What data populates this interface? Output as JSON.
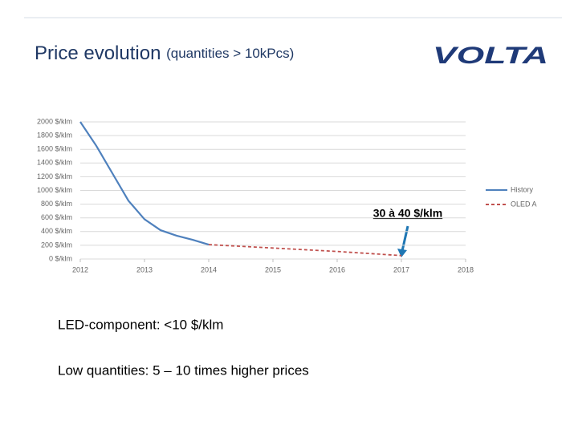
{
  "slide": {
    "title": "Price evolution",
    "subtitle": "(quantities > 10kPcs)",
    "logo": "VOLTA",
    "annotation": "30 à 40 $/klm",
    "bullets": [
      "LED-component: <10 $/klm",
      "Low quantities: 5 – 10 times higher prices"
    ]
  },
  "chart_data": {
    "type": "line",
    "series": [
      {
        "name": "History",
        "color": "#4f81bd",
        "dashed": false,
        "x": [
          2012,
          2012.25,
          2012.5,
          2012.75,
          2013,
          2013.25,
          2013.5,
          2013.75,
          2014
        ],
        "values": [
          2000,
          1650,
          1250,
          850,
          580,
          420,
          340,
          280,
          210
        ]
      },
      {
        "name": "OLED A",
        "color": "#c0504d",
        "dashed": true,
        "x": [
          2014,
          2015,
          2016,
          2016.5,
          2017
        ],
        "values": [
          210,
          160,
          110,
          80,
          50
        ]
      }
    ],
    "xlim": [
      2012,
      2018
    ],
    "xticks": [
      2012,
      2013,
      2014,
      2015,
      2016,
      2017,
      2018
    ],
    "ylim": [
      0,
      2000
    ],
    "yticks": [
      {
        "value": 0,
        "label": "0 $/klm"
      },
      {
        "value": 200,
        "label": "200 $/klm"
      },
      {
        "value": 400,
        "label": "400 $/klm"
      },
      {
        "value": 600,
        "label": "600 $/klm"
      },
      {
        "value": 800,
        "label": "800 $/klm"
      },
      {
        "value": 1000,
        "label": "1000 $/klm"
      },
      {
        "value": 1200,
        "label": "1200 $/klm"
      },
      {
        "value": 1400,
        "label": "1400 $/klm"
      },
      {
        "value": 1600,
        "label": "1600 $/klm"
      },
      {
        "value": 1800,
        "label": "1800 $/klm"
      },
      {
        "value": 2000,
        "label": "2000 $/klm"
      }
    ],
    "grid": true,
    "legend": "right"
  }
}
